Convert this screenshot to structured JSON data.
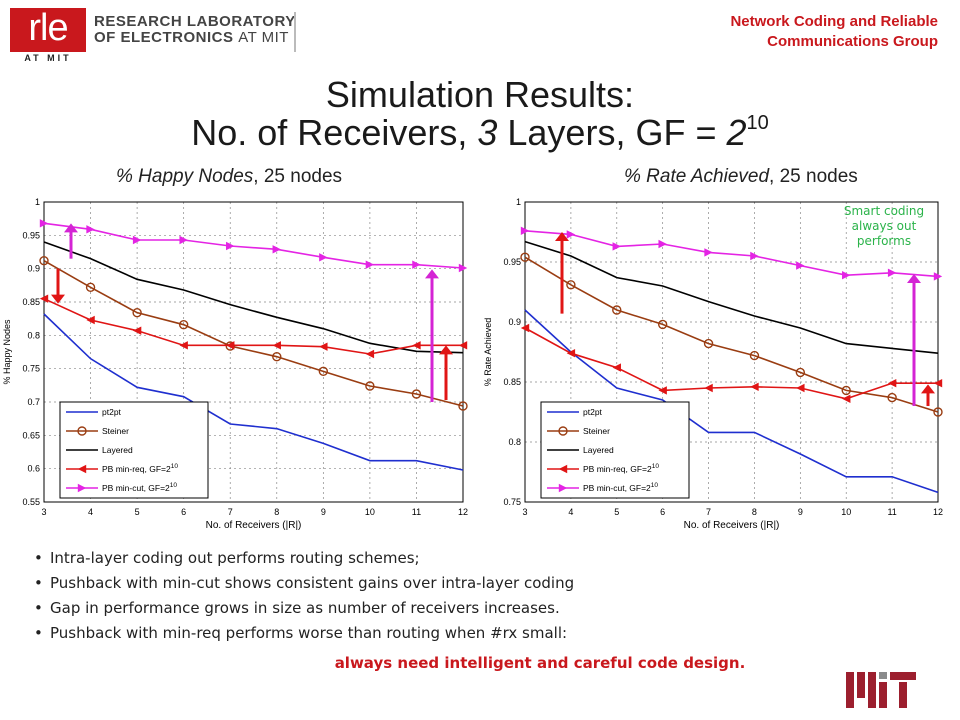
{
  "header": {
    "logo_rle": "rle",
    "logo_atmit": "AT MIT",
    "lab_line1": "RESEARCH LABORATORY",
    "lab_line2_a": "OF ELECTRONICS",
    "lab_line2_b": "AT MIT",
    "group_line1": "Network Coding and Reliable",
    "group_line2": "Communications Group"
  },
  "title": {
    "line1": "Simulation Results:",
    "line2_pre": "No. of Receivers, ",
    "line2_layers": "3",
    "line2_mid": " Layers, GF = ",
    "line2_base": "2",
    "line2_exp": "10"
  },
  "subtitles": {
    "left_italic": "% Happy Nodes",
    "left_rest": ", 25 nodes",
    "right_italic": "% Rate Achieved",
    "right_rest": ", 25 nodes"
  },
  "annotation": "Smart coding always out performs",
  "bullets": [
    "Intra-layer coding out performs routing schemes;",
    "Pushback with min-cut shows consistent gains over intra-layer coding",
    "Gap in performance grows in size as number of receivers increases.",
    "Pushback with min-req performs worse than routing when #rx small:"
  ],
  "conclusion": "always need intelligent and careful code design.",
  "colors": {
    "pt2pt": "#1f2fcf",
    "steiner": "#9a3d12",
    "layered": "#000000",
    "minreq": "#e01515",
    "mincut": "#e424e4",
    "arrow_red": "#e01515",
    "arrow_magenta": "#d424d4",
    "brand_red": "#c9181d",
    "annotation_green": "#2bb34a"
  },
  "chart_data": [
    {
      "type": "line",
      "xlabel": "No. of Receivers (|R|)",
      "ylabel": "% Happy Nodes",
      "x": [
        3,
        4,
        5,
        6,
        7,
        8,
        9,
        10,
        11,
        12
      ],
      "xlim": [
        3,
        12
      ],
      "ylim": [
        0.55,
        1
      ],
      "yticks": [
        "0.55",
        "0.6",
        "0.65",
        "0.7",
        "0.75",
        "0.8",
        "0.85",
        "0.9",
        "0.95",
        "1"
      ],
      "xticks": [
        "3",
        "4",
        "5",
        "6",
        "7",
        "8",
        "9",
        "10",
        "11",
        "12"
      ],
      "grid": true,
      "legend_position": "bottom-left",
      "series": [
        {
          "name": "pt2pt",
          "key": "pt2pt",
          "marker": "none",
          "values": [
            0.832,
            0.765,
            0.722,
            0.708,
            0.667,
            0.66,
            0.638,
            0.612,
            0.612,
            0.598
          ]
        },
        {
          "name": "Steiner",
          "key": "steiner",
          "marker": "circle",
          "values": [
            0.912,
            0.872,
            0.834,
            0.816,
            0.784,
            0.768,
            0.746,
            0.724,
            0.712,
            0.694
          ]
        },
        {
          "name": "Layered",
          "key": "layered",
          "marker": "none",
          "values": [
            0.94,
            0.915,
            0.884,
            0.868,
            0.846,
            0.827,
            0.81,
            0.788,
            0.776,
            0.774
          ]
        },
        {
          "name": "PB min-req, GF=2^10",
          "key": "minreq",
          "marker": "triangle-left",
          "values": [
            0.855,
            0.823,
            0.807,
            0.785,
            0.785,
            0.785,
            0.783,
            0.772,
            0.785,
            0.785
          ]
        },
        {
          "name": "PB min-cut, GF=2^10",
          "key": "mincut",
          "marker": "triangle-right",
          "values": [
            0.968,
            0.959,
            0.943,
            0.943,
            0.934,
            0.929,
            0.917,
            0.906,
            0.906,
            0.901
          ]
        }
      ],
      "legend_labels": [
        {
          "text": "pt2pt",
          "sup": ""
        },
        {
          "text": "Steiner",
          "sup": ""
        },
        {
          "text": "Layered",
          "sup": ""
        },
        {
          "text": "PB min-req, GF=2",
          "sup": "10"
        },
        {
          "text": "PB min-cut, GF=2",
          "sup": "10"
        }
      ]
    },
    {
      "type": "line",
      "xlabel": "No. of Receivers (|R|)",
      "ylabel": "% Rate Achieved",
      "x": [
        3,
        4,
        5,
        6,
        7,
        8,
        9,
        10,
        11,
        12
      ],
      "xlim": [
        3,
        12
      ],
      "ylim": [
        0.75,
        1
      ],
      "yticks": [
        "0.75",
        "0.8",
        "0.85",
        "0.9",
        "0.95",
        "1"
      ],
      "xticks": [
        "3",
        "4",
        "5",
        "6",
        "7",
        "8",
        "9",
        "10",
        "11",
        "12"
      ],
      "grid": true,
      "legend_position": "bottom-left",
      "series": [
        {
          "name": "pt2pt",
          "key": "pt2pt",
          "marker": "none",
          "values": [
            0.91,
            0.875,
            0.845,
            0.835,
            0.808,
            0.808,
            0.79,
            0.771,
            0.771,
            0.758
          ]
        },
        {
          "name": "Steiner",
          "key": "steiner",
          "marker": "circle",
          "values": [
            0.954,
            0.931,
            0.91,
            0.898,
            0.882,
            0.872,
            0.858,
            0.843,
            0.837,
            0.825
          ]
        },
        {
          "name": "Layered",
          "key": "layered",
          "marker": "none",
          "values": [
            0.967,
            0.955,
            0.937,
            0.93,
            0.917,
            0.905,
            0.895,
            0.882,
            0.878,
            0.874
          ]
        },
        {
          "name": "PB min-req, GF=2^10",
          "key": "minreq",
          "marker": "triangle-left",
          "values": [
            0.895,
            0.874,
            0.862,
            0.843,
            0.845,
            0.846,
            0.845,
            0.836,
            0.849,
            0.849
          ]
        },
        {
          "name": "PB min-cut, GF=2^10",
          "key": "mincut",
          "marker": "triangle-right",
          "values": [
            0.976,
            0.973,
            0.963,
            0.965,
            0.958,
            0.955,
            0.947,
            0.939,
            0.941,
            0.938
          ]
        }
      ],
      "legend_labels": [
        {
          "text": "pt2pt",
          "sup": ""
        },
        {
          "text": "Steiner",
          "sup": ""
        },
        {
          "text": "Layered",
          "sup": ""
        },
        {
          "text": "PB min-req, GF=2",
          "sup": "10"
        },
        {
          "text": "PB min-cut, GF=2",
          "sup": "10"
        }
      ]
    }
  ]
}
